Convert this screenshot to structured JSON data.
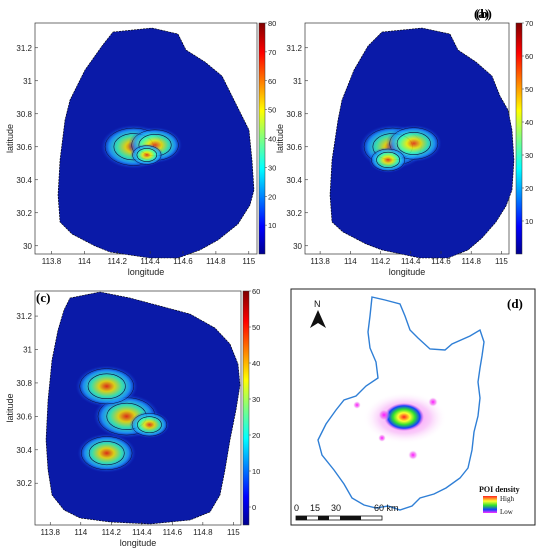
{
  "chart_data": [
    {
      "type": "heatmap",
      "panel_label": "(a)",
      "xlabel": "longitude",
      "ylabel": "latitude",
      "xticks": [
        113.8,
        114,
        114.2,
        114.4,
        114.6,
        114.8,
        115
      ],
      "yticks": [
        30,
        30.2,
        30.4,
        30.6,
        30.8,
        31,
        31.2
      ],
      "xlim": [
        113.7,
        115.05
      ],
      "ylim": [
        29.95,
        31.35
      ],
      "colorbar_ticks": [
        10,
        20,
        30,
        40,
        50,
        60,
        70,
        80
      ],
      "colorbar_range": [
        0,
        80
      ],
      "hotspots": [
        {
          "lon": 114.3,
          "lat": 30.6,
          "value": 80
        },
        {
          "lon": 114.43,
          "lat": 30.61,
          "value": 60
        },
        {
          "lon": 114.38,
          "lat": 30.55,
          "value": 25
        }
      ]
    },
    {
      "type": "heatmap",
      "panel_label": "(b)",
      "xlabel": "longitude",
      "ylabel": "latitude",
      "xticks": [
        113.8,
        114,
        114.2,
        114.4,
        114.6,
        114.8,
        115
      ],
      "yticks": [
        30,
        30.2,
        30.4,
        30.6,
        30.8,
        31,
        31.2
      ],
      "xlim": [
        113.7,
        115.05
      ],
      "ylim": [
        29.95,
        31.35
      ],
      "colorbar_ticks": [
        10,
        20,
        30,
        40,
        50,
        60,
        70
      ],
      "colorbar_range": [
        0,
        70
      ],
      "hotspots": [
        {
          "lon": 114.28,
          "lat": 30.6,
          "value": 70
        },
        {
          "lon": 114.42,
          "lat": 30.62,
          "value": 55
        },
        {
          "lon": 114.25,
          "lat": 30.52,
          "value": 30
        }
      ]
    },
    {
      "type": "heatmap",
      "panel_label": "(c)",
      "xlabel": "longitude",
      "ylabel": "latitude",
      "xticks": [
        113.8,
        114,
        114.2,
        114.4,
        114.6,
        114.8,
        115
      ],
      "yticks": [
        30.2,
        30.4,
        30.6,
        30.8,
        31,
        31.2
      ],
      "xlim": [
        113.7,
        115.05
      ],
      "ylim": [
        29.95,
        31.35
      ],
      "colorbar_ticks": [
        0,
        10,
        20,
        30,
        40,
        50,
        60
      ],
      "colorbar_range": [
        -5,
        60
      ],
      "hotspots": [
        {
          "lon": 114.3,
          "lat": 30.6,
          "value": 60
        },
        {
          "lon": 114.17,
          "lat": 30.78,
          "value": 55
        },
        {
          "lon": 114.17,
          "lat": 30.38,
          "value": 50
        },
        {
          "lon": 114.45,
          "lat": 30.55,
          "value": 25
        }
      ]
    },
    {
      "type": "heatmap",
      "panel_label": "(d)",
      "north_label": "N",
      "scale_labels": [
        "0",
        "15",
        "30",
        "60 km"
      ],
      "legend_title": "POI density",
      "legend_high": "High",
      "legend_low": "Low"
    }
  ],
  "colors": {
    "background_field": "#0a1aa8",
    "contour_line": "#0b0b3a",
    "boundary": "#2f7fd6",
    "poi_magenta": "#e040e0"
  }
}
